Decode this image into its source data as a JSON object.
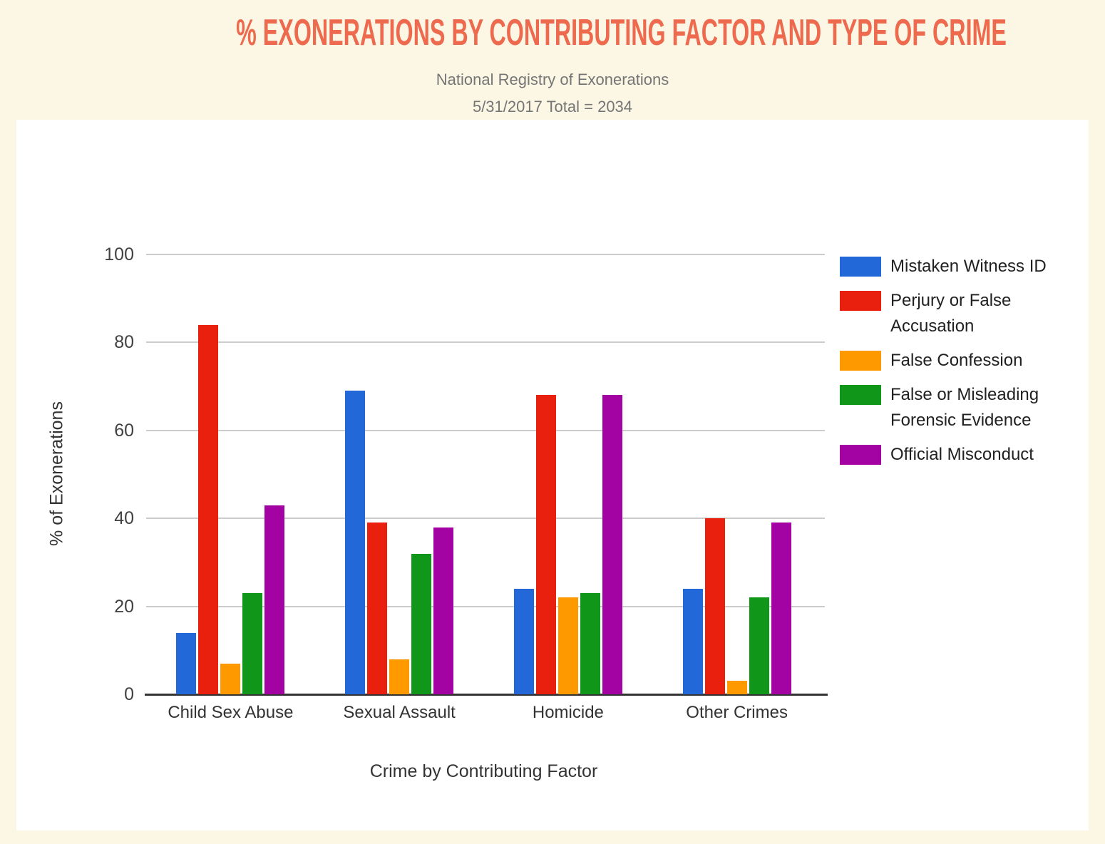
{
  "page": {
    "title": "% EXONERATIONS BY CONTRIBUTING FACTOR AND TYPE OF CRIME",
    "subtitle1": "National Registry of Exonerations",
    "subtitle2": "5/31/2017 Total = 2034"
  },
  "colors": {
    "background": "#fcf7e5",
    "card": "#ffffff",
    "title": "#ed6a4e",
    "subtitle": "#757575",
    "gridline": "#cccccc",
    "axis_line": "#333333",
    "tick_text": "#424242",
    "legend_text": "#212121"
  },
  "chart_data": {
    "type": "bar",
    "title": "% EXONERATIONS BY CONTRIBUTING FACTOR AND TYPE OF CRIME",
    "subtitle": [
      "National Registry of Exonerations",
      "5/31/2017 Total = 2034"
    ],
    "categories": [
      "Child Sex Abuse",
      "Sexual Assault",
      "Homicide",
      "Other Crimes"
    ],
    "series": [
      {
        "name": "Mistaken Witness ID",
        "color": "#2368d8",
        "values": [
          14,
          69,
          24,
          24
        ]
      },
      {
        "name": "Perjury or False Accusation",
        "color": "#e9200e",
        "values": [
          84,
          39,
          68,
          40
        ]
      },
      {
        "name": "False Confession",
        "color": "#ff9900",
        "values": [
          7,
          8,
          22,
          3
        ]
      },
      {
        "name": "False or Misleading Forensic Evidence",
        "color": "#109618",
        "values": [
          23,
          32,
          23,
          22
        ]
      },
      {
        "name": "Official Misconduct",
        "color": "#a303a3",
        "values": [
          43,
          38,
          68,
          39
        ]
      }
    ],
    "xlabel": "Crime by Contributing Factor",
    "ylabel": "% of Exonerations",
    "ylim": [
      0,
      100
    ],
    "yticks": [
      0,
      20,
      40,
      60,
      80,
      100
    ],
    "grid": true,
    "legend_position": "right"
  }
}
